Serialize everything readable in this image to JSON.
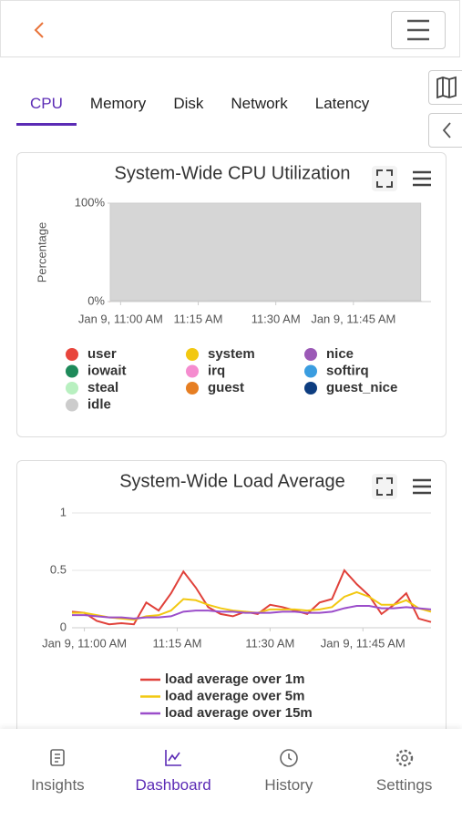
{
  "tabs": {
    "items": [
      "CPU",
      "Memory",
      "Disk",
      "Network",
      "Latency"
    ],
    "active": 0
  },
  "chart_data": [
    {
      "type": "area",
      "stacked": true,
      "title": "System-Wide CPU Utilization",
      "y_label": "Percentage",
      "x": [
        "10:58",
        "11:04",
        "11:10",
        "11:16",
        "11:22",
        "11:28",
        "11:34",
        "11:40",
        "11:46",
        "11:52",
        "11:58"
      ],
      "xlim": [
        "10:58",
        "12:00"
      ],
      "xticks": [
        {
          "value": "11:00",
          "label": "Jan 9, 11:00 AM"
        },
        {
          "value": "11:15",
          "label": "11:15 AM"
        },
        {
          "value": "11:30",
          "label": "11:30 AM"
        },
        {
          "value": "11:45",
          "label": "Jan 9, 11:45 AM"
        }
      ],
      "ylim": [
        0,
        100
      ],
      "yticks": [
        {
          "value": 0,
          "label": "0%"
        },
        {
          "value": 100,
          "label": "100%"
        }
      ],
      "legend_columns": 3,
      "series": [
        {
          "name": "user",
          "color": "#e8453c",
          "values": [
            0.3,
            0.3,
            0.4,
            0.5,
            0.3,
            0.3,
            0.3,
            0.3,
            0.5,
            0.3,
            0.3
          ]
        },
        {
          "name": "system",
          "color": "#f2c811",
          "values": [
            0.2,
            0.2,
            0.2,
            0.3,
            0.2,
            0.2,
            0.2,
            0.2,
            0.3,
            0.2,
            0.2
          ]
        },
        {
          "name": "nice",
          "color": "#9b59b6",
          "values": [
            0,
            0,
            0,
            0,
            0,
            0,
            0,
            0,
            0,
            0,
            0
          ]
        },
        {
          "name": "iowait",
          "color": "#1e8a5a",
          "values": [
            0,
            0,
            0,
            0,
            0,
            0,
            0,
            0,
            0,
            0,
            0
          ]
        },
        {
          "name": "irq",
          "color": "#f58ccf",
          "values": [
            0,
            0,
            0,
            0,
            0,
            0,
            0,
            0,
            0,
            0,
            0
          ]
        },
        {
          "name": "softirq",
          "color": "#3a9de0",
          "values": [
            0.1,
            0.1,
            0.1,
            0.1,
            0.1,
            0.1,
            0.1,
            0.1,
            0.1,
            0.1,
            0.1
          ]
        },
        {
          "name": "steal",
          "color": "#b8f0c0",
          "values": [
            0,
            0,
            0,
            0,
            0,
            0,
            0,
            0,
            0,
            0,
            0
          ]
        },
        {
          "name": "guest",
          "color": "#e67e22",
          "values": [
            0,
            0,
            0,
            0,
            0,
            0,
            0,
            0,
            0,
            0,
            0
          ]
        },
        {
          "name": "guest_nice",
          "color": "#0d3d80",
          "values": [
            0,
            0,
            0,
            0,
            0,
            0,
            0,
            0,
            0,
            0,
            0
          ]
        },
        {
          "name": "idle",
          "color": "#cccccc",
          "values": [
            99.4,
            99.4,
            99.3,
            99.1,
            99.4,
            99.4,
            99.4,
            99.4,
            99.1,
            99.4,
            99.4
          ]
        }
      ]
    },
    {
      "type": "line",
      "title": "System-Wide Load Average",
      "x": [
        "10:58",
        "11:00",
        "11:02",
        "11:04",
        "11:06",
        "11:08",
        "11:10",
        "11:12",
        "11:14",
        "11:16",
        "11:18",
        "11:20",
        "11:22",
        "11:24",
        "11:26",
        "11:28",
        "11:30",
        "11:32",
        "11:34",
        "11:36",
        "11:38",
        "11:40",
        "11:42",
        "11:44",
        "11:46",
        "11:48",
        "11:50",
        "11:52",
        "11:54",
        "11:56"
      ],
      "xlim": [
        "10:58",
        "11:56"
      ],
      "xticks": [
        {
          "value": "11:00",
          "label": "Jan 9, 11:00 AM"
        },
        {
          "value": "11:15",
          "label": "11:15 AM"
        },
        {
          "value": "11:30",
          "label": "11:30 AM"
        },
        {
          "value": "11:45",
          "label": "Jan 9, 11:45 AM"
        }
      ],
      "ylim": [
        0,
        1
      ],
      "yticks": [
        0,
        0.5,
        1
      ],
      "grid": true,
      "legend_columns": 1,
      "series": [
        {
          "name": "load average over 1m",
          "color": "#e0413a",
          "values": [
            0.14,
            0.13,
            0.06,
            0.03,
            0.04,
            0.03,
            0.22,
            0.15,
            0.3,
            0.49,
            0.35,
            0.18,
            0.12,
            0.1,
            0.14,
            0.12,
            0.2,
            0.18,
            0.15,
            0.12,
            0.22,
            0.25,
            0.5,
            0.38,
            0.28,
            0.12,
            0.2,
            0.3,
            0.08,
            0.05
          ]
        },
        {
          "name": "load average over 5m",
          "color": "#f2c811",
          "values": [
            0.13,
            0.13,
            0.11,
            0.09,
            0.08,
            0.07,
            0.1,
            0.11,
            0.15,
            0.25,
            0.24,
            0.2,
            0.17,
            0.15,
            0.14,
            0.13,
            0.16,
            0.16,
            0.16,
            0.15,
            0.16,
            0.18,
            0.27,
            0.31,
            0.27,
            0.2,
            0.2,
            0.24,
            0.17,
            0.14
          ]
        },
        {
          "name": "load average over 15m",
          "color": "#9b4dca",
          "values": [
            0.11,
            0.11,
            0.1,
            0.09,
            0.09,
            0.08,
            0.09,
            0.09,
            0.1,
            0.14,
            0.15,
            0.15,
            0.14,
            0.14,
            0.13,
            0.13,
            0.13,
            0.14,
            0.14,
            0.13,
            0.13,
            0.14,
            0.17,
            0.19,
            0.19,
            0.17,
            0.17,
            0.18,
            0.17,
            0.16
          ]
        }
      ]
    }
  ],
  "nav": {
    "items": [
      "Insights",
      "Dashboard",
      "History",
      "Settings"
    ],
    "active": 1
  }
}
